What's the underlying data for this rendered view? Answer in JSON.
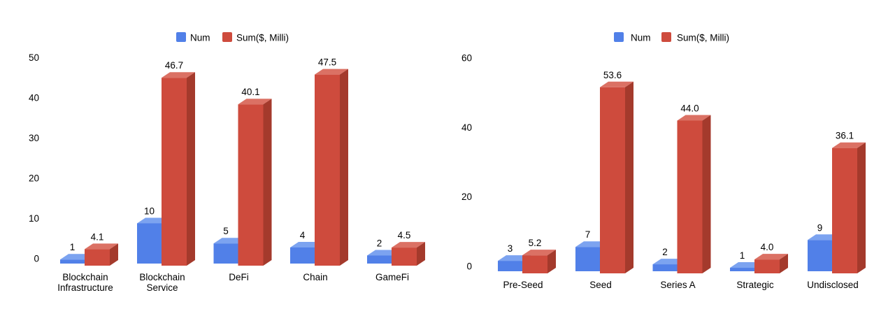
{
  "page": {
    "background": "#FFFFFF"
  },
  "colors": {
    "blue": {
      "front": "#5180E8",
      "top": "#7CA3F0",
      "side": "#3A5FC0"
    },
    "red": {
      "front": "#CE4B3D",
      "top": "#DB7164",
      "side": "#A43A2C"
    },
    "text": "#000000",
    "background": "#FFFFFF"
  },
  "chart_data": [
    {
      "type": "bar",
      "variant": "3d-column-grouped",
      "title": "",
      "xlabel": "",
      "ylabel": "",
      "grid": false,
      "legend_position": "top-center",
      "y_axis": {
        "min": 0,
        "max": 50,
        "ticks": [
          0,
          10,
          20,
          30,
          40,
          50
        ]
      },
      "categories": [
        [
          "Blockchain",
          "Infrastructure"
        ],
        [
          "Blockchain",
          "Service"
        ],
        [
          "DeFi"
        ],
        [
          "Chain"
        ],
        [
          "GameFi"
        ]
      ],
      "series": [
        {
          "name": "Num",
          "color": "blue",
          "values": [
            1,
            10,
            5,
            4,
            2
          ],
          "labels": [
            "1",
            "10",
            "5",
            "4",
            "2"
          ]
        },
        {
          "name": "Sum($, Milli)",
          "color": "red",
          "values": [
            4.1,
            46.7,
            40.1,
            47.5,
            4.5
          ],
          "labels": [
            "4.1",
            "46.7",
            "40.1",
            "47.5",
            "4.5"
          ]
        }
      ]
    },
    {
      "type": "bar",
      "variant": "3d-column-grouped",
      "title": "",
      "xlabel": "",
      "ylabel": "",
      "grid": false,
      "legend_position": "top-center",
      "y_axis": {
        "min": 0,
        "max": 60,
        "ticks": [
          0,
          20,
          40,
          60
        ]
      },
      "categories": [
        [
          "Pre-Seed"
        ],
        [
          "Seed"
        ],
        [
          "Series A"
        ],
        [
          "Strategic"
        ],
        [
          "Undisclosed"
        ]
      ],
      "series": [
        {
          "name": "Num",
          "color": "blue",
          "values": [
            3,
            7,
            2,
            1,
            9
          ],
          "labels": [
            "3",
            "7",
            "2",
            "1",
            "9"
          ]
        },
        {
          "name": "Sum($, Milli)",
          "color": "red",
          "values": [
            5.2,
            53.6,
            44.0,
            4.0,
            36.1
          ],
          "labels": [
            "5.2",
            "53.6",
            "44.0",
            "4.0",
            "36.1"
          ]
        }
      ]
    }
  ]
}
